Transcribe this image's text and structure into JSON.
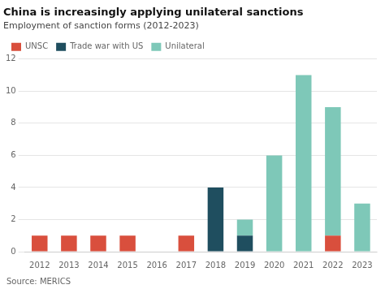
{
  "chart_data": {
    "type": "bar",
    "stacked": true,
    "title": "China is increasingly applying unilateral sanctions",
    "subtitle": "Employment of sanction forms (2012-2023)",
    "source": "Source: MERICS",
    "categories": [
      "2012",
      "2013",
      "2014",
      "2015",
      "2016",
      "2017",
      "2018",
      "2019",
      "2020",
      "2021",
      "2022",
      "2023"
    ],
    "series": [
      {
        "name": "UNSC",
        "color": "#d94f3d",
        "values": [
          1,
          1,
          1,
          1,
          0,
          1,
          0,
          0,
          0,
          0,
          1,
          0
        ]
      },
      {
        "name": "Trade war with US",
        "color": "#1f4e5f",
        "values": [
          0,
          0,
          0,
          0,
          0,
          0,
          4,
          1,
          0,
          0,
          0,
          0
        ]
      },
      {
        "name": "Unilateral",
        "color": "#7ec8b8",
        "values": [
          0,
          0,
          0,
          0,
          0,
          0,
          0,
          1,
          6,
          11,
          8,
          3
        ]
      }
    ],
    "ylim": [
      0,
      12
    ],
    "yticks": [
      0,
      2,
      4,
      6,
      8,
      10,
      12
    ],
    "grid": true,
    "legend": "top-left"
  }
}
